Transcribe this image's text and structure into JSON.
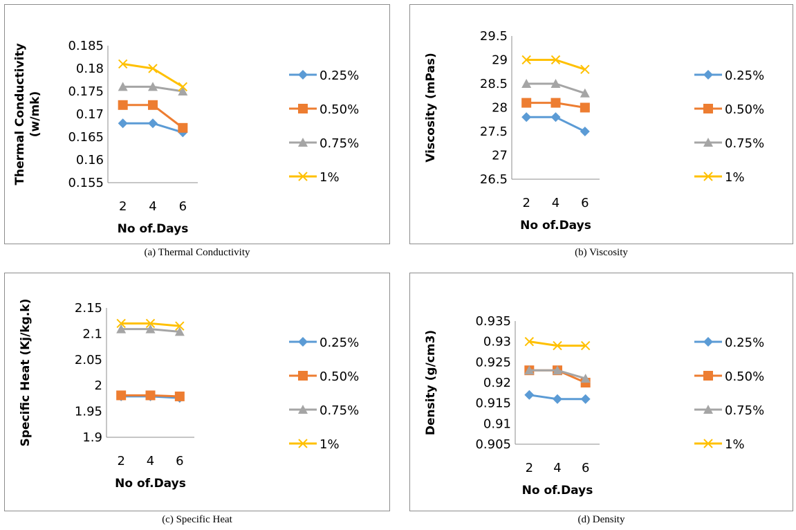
{
  "series_styles": [
    {
      "color": "#5B9BD5",
      "marker": "diamond"
    },
    {
      "color": "#ED7D31",
      "marker": "square"
    },
    {
      "color": "#A5A5A5",
      "marker": "triangle"
    },
    {
      "color": "#FFC000",
      "marker": "cross"
    }
  ],
  "chart_data": [
    {
      "type": "line",
      "caption": "(a) Thermal Conductivity",
      "xlabel": "No of.Days",
      "ylabel": "Thermal Conductivity (w/mk)",
      "categories": [
        "2",
        "4",
        "6"
      ],
      "ylim": [
        0.155,
        0.185
      ],
      "yticks": [
        "0.155",
        "0.16",
        "0.165",
        "0.17",
        "0.175",
        "0.18",
        "0.185"
      ],
      "legend_position": "right",
      "series": [
        {
          "name": "0.25%",
          "values": [
            0.168,
            0.168,
            0.166
          ]
        },
        {
          "name": "0.50%",
          "values": [
            0.172,
            0.172,
            0.167
          ]
        },
        {
          "name": "0.75%",
          "values": [
            0.176,
            0.176,
            0.175
          ]
        },
        {
          "name": "1%",
          "values": [
            0.181,
            0.18,
            0.176
          ]
        }
      ]
    },
    {
      "type": "line",
      "caption": "(b) Viscosity",
      "xlabel": "No of.Days",
      "ylabel": "Viscosity (mPas)",
      "categories": [
        "2",
        "4",
        "6"
      ],
      "ylim": [
        26.5,
        29.5
      ],
      "yticks": [
        "26.5",
        "27",
        "27.5",
        "28",
        "28.5",
        "29",
        "29.5"
      ],
      "legend_position": "right",
      "series": [
        {
          "name": "0.25%",
          "values": [
            27.8,
            27.8,
            27.5
          ]
        },
        {
          "name": "0.50%",
          "values": [
            28.1,
            28.1,
            28.0
          ]
        },
        {
          "name": "0.75%",
          "values": [
            28.5,
            28.5,
            28.3
          ]
        },
        {
          "name": "1%",
          "values": [
            29.0,
            29.0,
            28.8
          ]
        }
      ]
    },
    {
      "type": "line",
      "caption": "(c) Specific Heat",
      "xlabel": "No of.Days",
      "ylabel": "Specific Heat (Kj/kg.k)",
      "categories": [
        "2",
        "4",
        "6"
      ],
      "ylim": [
        1.9,
        2.15
      ],
      "yticks": [
        "1.9",
        "1.95",
        "2",
        "2.05",
        "2.1",
        "2.15"
      ],
      "legend_position": "right",
      "series": [
        {
          "name": "0.25%",
          "values": [
            1.979,
            1.979,
            1.976
          ]
        },
        {
          "name": "0.50%",
          "values": [
            1.981,
            1.981,
            1.979
          ]
        },
        {
          "name": "0.75%",
          "values": [
            2.109,
            2.109,
            2.104
          ]
        },
        {
          "name": "1%",
          "values": [
            2.12,
            2.12,
            2.115
          ]
        }
      ]
    },
    {
      "type": "line",
      "caption": "(d) Density",
      "xlabel": "No of.Days",
      "ylabel": "Density (g/cm3)",
      "categories": [
        "2",
        "4",
        "6"
      ],
      "ylim": [
        0.905,
        0.935
      ],
      "yticks": [
        "0.905",
        "0.91",
        "0.915",
        "0.92",
        "0.925",
        "0.93",
        "0.935"
      ],
      "legend_position": "right",
      "series": [
        {
          "name": "0.25%",
          "values": [
            0.917,
            0.916,
            0.916
          ]
        },
        {
          "name": "0.50%",
          "values": [
            0.923,
            0.923,
            0.92
          ]
        },
        {
          "name": "0.75%",
          "values": [
            0.923,
            0.923,
            0.921
          ]
        },
        {
          "name": "1%",
          "values": [
            0.93,
            0.929,
            0.929
          ]
        }
      ]
    }
  ]
}
